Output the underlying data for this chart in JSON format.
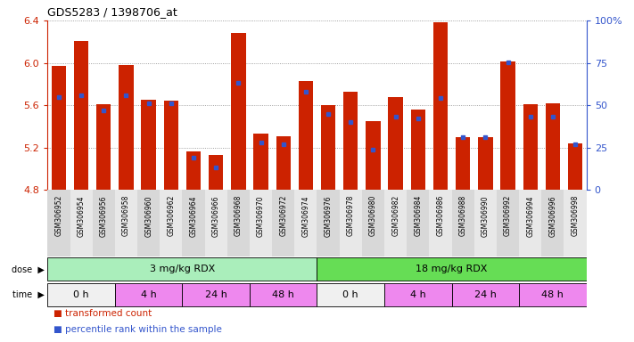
{
  "title": "GDS5283 / 1398706_at",
  "samples": [
    "GSM306952",
    "GSM306954",
    "GSM306956",
    "GSM306958",
    "GSM306960",
    "GSM306962",
    "GSM306964",
    "GSM306966",
    "GSM306968",
    "GSM306970",
    "GSM306972",
    "GSM306974",
    "GSM306976",
    "GSM306978",
    "GSM306980",
    "GSM306982",
    "GSM306984",
    "GSM306986",
    "GSM306988",
    "GSM306990",
    "GSM306992",
    "GSM306994",
    "GSM306996",
    "GSM306998"
  ],
  "bar_values": [
    5.97,
    6.21,
    5.61,
    5.98,
    5.65,
    5.64,
    5.16,
    5.13,
    6.28,
    5.33,
    5.31,
    5.83,
    5.6,
    5.73,
    5.45,
    5.68,
    5.56,
    6.38,
    5.3,
    5.3,
    6.01,
    5.61,
    5.62,
    5.24
  ],
  "percentile_values": [
    55,
    56,
    47,
    56,
    51,
    51,
    19,
    13,
    63,
    28,
    27,
    58,
    45,
    40,
    24,
    43,
    42,
    54,
    43,
    43,
    78,
    43,
    43,
    27
  ],
  "baseline": 4.8,
  "ylim": [
    4.8,
    6.4
  ],
  "yticks": [
    4.8,
    5.2,
    5.6,
    6.0,
    6.4
  ],
  "right_yticks": [
    0,
    25,
    50,
    75,
    100
  ],
  "bar_color": "#CC2200",
  "percentile_color": "#3355CC",
  "bar_width": 0.65,
  "dose_groups": [
    {
      "label": "3 mg/kg RDX",
      "start": 0,
      "end": 12,
      "color": "#AAEEBB"
    },
    {
      "label": "18 mg/kg RDX",
      "start": 12,
      "end": 24,
      "color": "#66DD55"
    }
  ],
  "time_groups": [
    {
      "label": "0 h",
      "start": 0,
      "end": 3,
      "color": "#F0F0F0"
    },
    {
      "label": "4 h",
      "start": 3,
      "end": 6,
      "color": "#EE88EE"
    },
    {
      "label": "24 h",
      "start": 6,
      "end": 9,
      "color": "#EE88EE"
    },
    {
      "label": "48 h",
      "start": 9,
      "end": 12,
      "color": "#EE88EE"
    },
    {
      "label": "0 h",
      "start": 12,
      "end": 15,
      "color": "#F0F0F0"
    },
    {
      "label": "4 h",
      "start": 15,
      "end": 18,
      "color": "#EE88EE"
    },
    {
      "label": "24 h",
      "start": 18,
      "end": 21,
      "color": "#EE88EE"
    },
    {
      "label": "48 h",
      "start": 21,
      "end": 24,
      "color": "#EE88EE"
    }
  ],
  "legend_items": [
    {
      "label": "transformed count",
      "color": "#CC2200"
    },
    {
      "label": "percentile rank within the sample",
      "color": "#3355CC"
    }
  ],
  "axis_color_left": "#CC2200",
  "axis_color_right": "#3355CC",
  "bg_color": "#FFFFFF",
  "grid_color": "#888888",
  "label_row_colors": [
    "#D8D8D8",
    "#E8E8E8"
  ]
}
